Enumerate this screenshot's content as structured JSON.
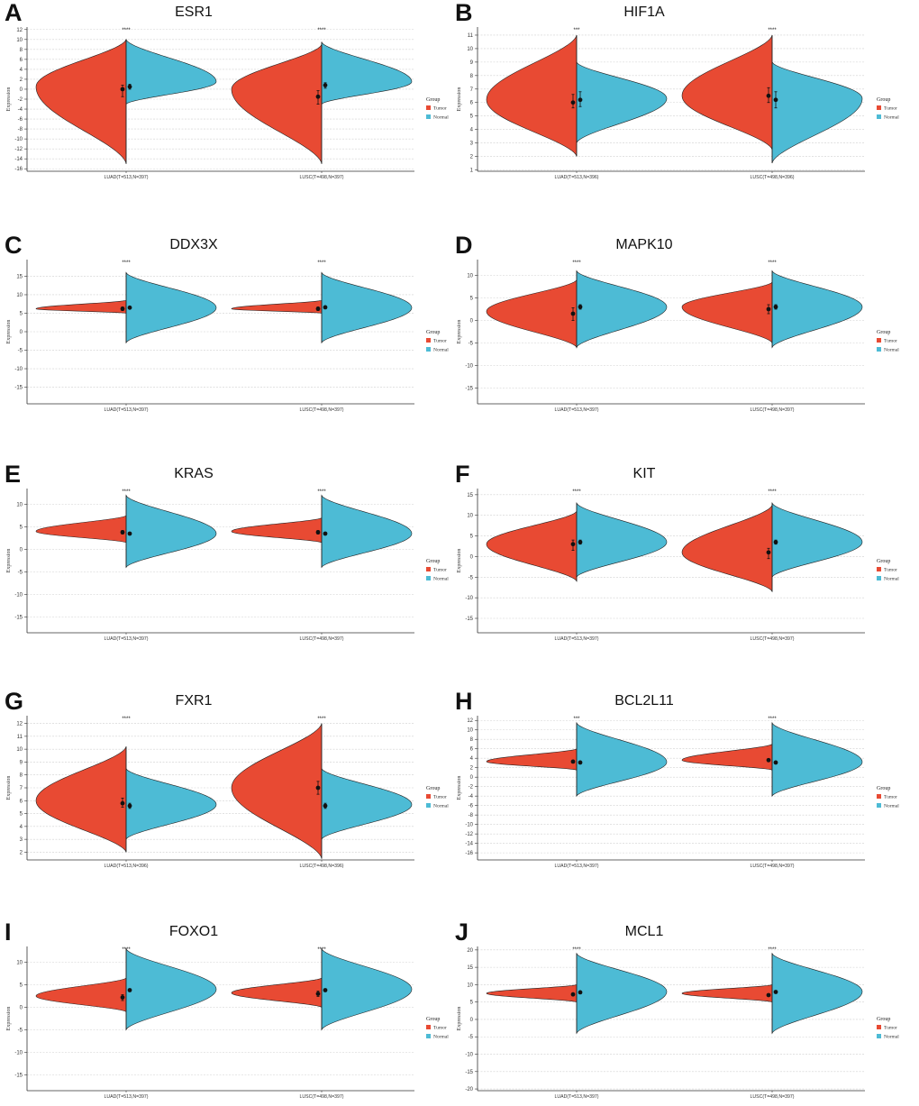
{
  "figure": {
    "legend_title": "Group",
    "group_labels": [
      "Tumor",
      "Normal"
    ],
    "ylabel": "Expression"
  },
  "colors": {
    "tumor": "#e84a33",
    "normal": "#4dbbd5",
    "axis": "#333333",
    "grid": "#d0d0d0"
  },
  "chart_data": [
    {
      "letter": "A",
      "title": "ESR1",
      "type": "violin",
      "ylabel": "Expression",
      "ylim": [
        -16.5,
        12.5
      ],
      "yticks": [
        12,
        10,
        8,
        6,
        4,
        2,
        0,
        -2,
        -4,
        -6,
        -8,
        -10,
        -12,
        -14,
        -16
      ],
      "categories": [
        "LUAD(T=513,N=397)",
        "LUSC(T=498,N=397)"
      ],
      "significance": [
        "****",
        "****"
      ],
      "series": [
        {
          "name": "Tumor",
          "medians": [
            0.0,
            -1.5
          ],
          "q1": [
            -1.5,
            -3.0
          ],
          "q3": [
            0.8,
            -0.3
          ],
          "mins": [
            -15.0,
            -15.0
          ],
          "maxs": [
            10.0,
            9.0
          ],
          "modes": [
            0.5,
            0.0
          ]
        },
        {
          "name": "Normal",
          "medians": [
            0.5,
            0.8
          ],
          "q1": [
            0.0,
            0.2
          ],
          "q3": [
            1.0,
            1.3
          ],
          "mins": [
            -3.0,
            -3.0
          ],
          "maxs": [
            10.0,
            9.5
          ],
          "modes": [
            1.5,
            1.5
          ]
        }
      ]
    },
    {
      "letter": "B",
      "title": "HIF1A",
      "type": "violin",
      "ylabel": "Expression",
      "ylim": [
        0.9,
        11.6
      ],
      "yticks": [
        11,
        10,
        9,
        8,
        7,
        6,
        5,
        4,
        3,
        2,
        1
      ],
      "categories": [
        "LUAD(T=513,N=396)",
        "LUSC(T=498,N=396)"
      ],
      "significance": [
        "***",
        "****"
      ],
      "series": [
        {
          "name": "Tumor",
          "medians": [
            6.0,
            6.5
          ],
          "q1": [
            5.6,
            6.0
          ],
          "q3": [
            6.6,
            7.1
          ],
          "mins": [
            2.0,
            2.5
          ],
          "maxs": [
            11.0,
            11.0
          ],
          "modes": [
            6.2,
            6.5
          ]
        },
        {
          "name": "Normal",
          "medians": [
            6.2,
            6.2
          ],
          "q1": [
            5.7,
            5.6
          ],
          "q3": [
            6.8,
            6.8
          ],
          "mins": [
            3.0,
            1.5
          ],
          "maxs": [
            9.0,
            9.0
          ],
          "modes": [
            6.3,
            6.3
          ]
        }
      ]
    },
    {
      "letter": "C",
      "title": "DDX3X",
      "type": "violin",
      "ylabel": "Expression",
      "ylim": [
        -19.5,
        19.5
      ],
      "yticks": [
        15,
        10,
        5,
        0,
        -5,
        -10,
        -15
      ],
      "categories": [
        "LUAD(T=513,N=397)",
        "LUSC(T=498,N=397)"
      ],
      "significance": [
        "****",
        "****"
      ],
      "series": [
        {
          "name": "Tumor",
          "medians": [
            6.2,
            6.2
          ],
          "q1": [
            5.7,
            5.7
          ],
          "q3": [
            6.7,
            6.7
          ],
          "mins": [
            5.0,
            5.0
          ],
          "maxs": [
            8.5,
            8.5
          ],
          "modes": [
            6.2,
            6.2
          ]
        },
        {
          "name": "Normal",
          "medians": [
            6.5,
            6.6
          ],
          "q1": [
            6.2,
            6.3
          ],
          "q3": [
            6.8,
            6.9
          ],
          "mins": [
            -3.0,
            -3.0
          ],
          "maxs": [
            16.0,
            16.0
          ],
          "modes": [
            6.5,
            6.5
          ]
        }
      ]
    },
    {
      "letter": "D",
      "title": "MAPK10",
      "type": "violin",
      "ylabel": "Expression",
      "ylim": [
        -18.5,
        13.5
      ],
      "yticks": [
        10,
        5,
        0,
        -5,
        -10,
        -15
      ],
      "categories": [
        "LUAD(T=513,N=397)",
        "LUSC(T=498,N=397)"
      ],
      "significance": [
        "****",
        "****"
      ],
      "series": [
        {
          "name": "Tumor",
          "medians": [
            1.5,
            2.5
          ],
          "q1": [
            0.0,
            1.5
          ],
          "q3": [
            2.8,
            3.5
          ],
          "mins": [
            -6.0,
            -5.0
          ],
          "maxs": [
            9.0,
            8.5
          ],
          "modes": [
            2.0,
            3.0
          ]
        },
        {
          "name": "Normal",
          "medians": [
            3.0,
            3.0
          ],
          "q1": [
            2.5,
            2.5
          ],
          "q3": [
            3.5,
            3.5
          ],
          "mins": [
            -6.0,
            -6.0
          ],
          "maxs": [
            11.0,
            11.0
          ],
          "modes": [
            3.0,
            3.0
          ]
        }
      ]
    },
    {
      "letter": "E",
      "title": "KRAS",
      "type": "violin",
      "ylabel": "Expression",
      "ylim": [
        -18.5,
        13.5
      ],
      "yticks": [
        10,
        5,
        0,
        -5,
        -10,
        -15
      ],
      "categories": [
        "LUAD(T=513,N=397)",
        "LUSC(T=498,N=397)"
      ],
      "significance": [
        "****",
        "****"
      ],
      "series": [
        {
          "name": "Tumor",
          "medians": [
            3.8,
            3.8
          ],
          "q1": [
            3.4,
            3.4
          ],
          "q3": [
            4.2,
            4.2
          ],
          "mins": [
            1.5,
            1.5
          ],
          "maxs": [
            7.5,
            7.0
          ],
          "modes": [
            4.0,
            4.0
          ]
        },
        {
          "name": "Normal",
          "medians": [
            3.5,
            3.5
          ],
          "q1": [
            3.2,
            3.2
          ],
          "q3": [
            3.8,
            3.8
          ],
          "mins": [
            -4.0,
            -4.0
          ],
          "maxs": [
            12.0,
            12.0
          ],
          "modes": [
            3.5,
            3.5
          ]
        }
      ]
    },
    {
      "letter": "F",
      "title": "KIT",
      "type": "violin",
      "ylabel": "Expression",
      "ylim": [
        -18.5,
        16.5
      ],
      "yticks": [
        15,
        10,
        5,
        0,
        -5,
        -10,
        -15
      ],
      "categories": [
        "LUAD(T=513,N=397)",
        "LUSC(T=498,N=397)"
      ],
      "significance": [
        "****",
        "****"
      ],
      "series": [
        {
          "name": "Tumor",
          "medians": [
            3.0,
            1.0
          ],
          "q1": [
            1.5,
            -0.5
          ],
          "q3": [
            4.0,
            2.0
          ],
          "mins": [
            -6.0,
            -8.5
          ],
          "maxs": [
            11.0,
            12.5
          ],
          "modes": [
            3.0,
            1.0
          ]
        },
        {
          "name": "Normal",
          "medians": [
            3.5,
            3.5
          ],
          "q1": [
            3.0,
            3.0
          ],
          "q3": [
            4.0,
            4.0
          ],
          "mins": [
            -5.0,
            -5.0
          ],
          "maxs": [
            13.0,
            13.0
          ],
          "modes": [
            3.5,
            3.5
          ]
        }
      ]
    },
    {
      "letter": "G",
      "title": "FXR1",
      "type": "violin",
      "ylabel": "Expression",
      "ylim": [
        1.4,
        12.6
      ],
      "yticks": [
        12,
        11,
        10,
        9,
        8,
        7,
        6,
        5,
        4,
        3,
        2
      ],
      "categories": [
        "LUAD(T=513,N=396)",
        "LUSC(T=498,N=396)"
      ],
      "significance": [
        "****",
        "****"
      ],
      "series": [
        {
          "name": "Tumor",
          "medians": [
            5.8,
            7.0
          ],
          "q1": [
            5.5,
            6.5
          ],
          "q3": [
            6.2,
            7.5
          ],
          "mins": [
            2.0,
            1.5
          ],
          "maxs": [
            10.2,
            12.0
          ],
          "modes": [
            6.0,
            7.0
          ]
        },
        {
          "name": "Normal",
          "medians": [
            5.6,
            5.6
          ],
          "q1": [
            5.4,
            5.4
          ],
          "q3": [
            5.8,
            5.8
          ],
          "mins": [
            3.0,
            3.0
          ],
          "maxs": [
            8.5,
            8.5
          ],
          "modes": [
            5.7,
            5.7
          ]
        }
      ]
    },
    {
      "letter": "H",
      "title": "BCL2L11",
      "type": "violin",
      "ylabel": "Expression",
      "ylim": [
        -17.5,
        13.0
      ],
      "yticks": [
        12,
        10,
        8,
        6,
        4,
        2,
        0,
        -2,
        -4,
        -6,
        -8,
        -10,
        -12,
        -14,
        -16
      ],
      "categories": [
        "LUAD(T=513,N=397)",
        "LUSC(T=498,N=397)"
      ],
      "significance": [
        "***",
        "****"
      ],
      "series": [
        {
          "name": "Tumor",
          "medians": [
            3.3,
            3.6
          ],
          "q1": [
            3.0,
            3.3
          ],
          "q3": [
            3.6,
            3.9
          ],
          "mins": [
            1.5,
            1.5
          ],
          "maxs": [
            6.0,
            7.0
          ],
          "modes": [
            3.3,
            3.6
          ]
        },
        {
          "name": "Normal",
          "medians": [
            3.1,
            3.1
          ],
          "q1": [
            2.8,
            2.8
          ],
          "q3": [
            3.4,
            3.4
          ],
          "mins": [
            -4.0,
            -4.0
          ],
          "maxs": [
            11.5,
            11.5
          ],
          "modes": [
            3.2,
            3.2
          ]
        }
      ]
    },
    {
      "letter": "I",
      "title": "FOXO1",
      "type": "violin",
      "ylabel": "Expression",
      "ylim": [
        -18.5,
        13.5
      ],
      "yticks": [
        10,
        5,
        0,
        -5,
        -10,
        -15
      ],
      "categories": [
        "LUAD(T=513,N=397)",
        "LUSC(T=498,N=397)"
      ],
      "significance": [
        "****",
        "****"
      ],
      "series": [
        {
          "name": "Tumor",
          "medians": [
            2.2,
            3.0
          ],
          "q1": [
            1.5,
            2.4
          ],
          "q3": [
            2.8,
            3.6
          ],
          "mins": [
            -1.0,
            0.0
          ],
          "maxs": [
            6.5,
            6.5
          ],
          "modes": [
            2.5,
            3.2
          ]
        },
        {
          "name": "Normal",
          "medians": [
            3.8,
            3.8
          ],
          "q1": [
            3.5,
            3.5
          ],
          "q3": [
            4.1,
            4.1
          ],
          "mins": [
            -5.0,
            -5.0
          ],
          "maxs": [
            13.0,
            13.0
          ],
          "modes": [
            4.0,
            4.0
          ]
        }
      ]
    },
    {
      "letter": "J",
      "title": "MCL1",
      "type": "violin",
      "ylabel": "Expression",
      "ylim": [
        -20.5,
        21.0
      ],
      "yticks": [
        20,
        15,
        10,
        5,
        0,
        -5,
        -10,
        -15,
        -20
      ],
      "categories": [
        "LUAD(T=513,N=397)",
        "LUSC(T=498,N=397)"
      ],
      "significance": [
        "****",
        "****"
      ],
      "series": [
        {
          "name": "Tumor",
          "medians": [
            7.2,
            7.0
          ],
          "q1": [
            6.8,
            6.6
          ],
          "q3": [
            7.6,
            7.4
          ],
          "mins": [
            5.0,
            5.0
          ],
          "maxs": [
            10.0,
            10.0
          ],
          "modes": [
            7.5,
            7.5
          ]
        },
        {
          "name": "Normal",
          "medians": [
            7.8,
            7.9
          ],
          "q1": [
            7.5,
            7.6
          ],
          "q3": [
            8.1,
            8.2
          ],
          "mins": [
            -4.0,
            -4.0
          ],
          "maxs": [
            19.0,
            19.0
          ],
          "modes": [
            8.0,
            8.0
          ]
        }
      ]
    }
  ]
}
